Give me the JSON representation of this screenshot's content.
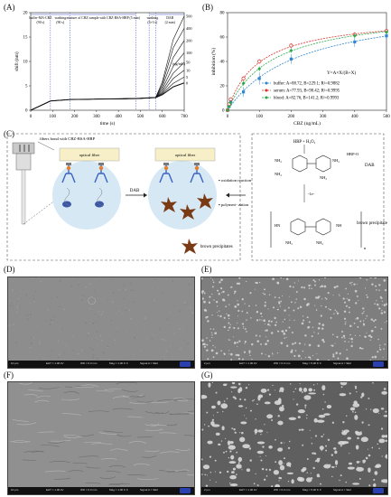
{
  "panels": {
    "A": "(A)",
    "B": "(B)",
    "C": "(C)",
    "D": "(D)",
    "E": "(E)",
    "F": "(F)",
    "G": "(G)"
  },
  "panel_a": {
    "phases": [
      {
        "label": "buffer-MA-CBZ",
        "sub": "(90 s)"
      },
      {
        "label": "washing",
        "sub": "(90 s)"
      },
      {
        "label": "mixture of CBZ sample with CBZ-BSA-HRP (5 min)",
        "sub": ""
      },
      {
        "label": "washing",
        "sub": "(3+3 s)"
      },
      {
        "label": "DAB",
        "sub": "(2 min)"
      }
    ],
    "conc_unit": "(ng/mL)",
    "curve_labels": [
      "0",
      "5",
      "10",
      "50",
      "100",
      "200",
      "400",
      "500"
    ]
  },
  "panel_b": {
    "equation": "Y=A×X/(B+X)",
    "legend": [
      {
        "name": "buffer: A=88.72, B=229.1; R²=0.9882",
        "color": "#2f86d1"
      },
      {
        "name": "serum: A=77.93, B=98.42; R²=0.9995",
        "color": "#d9342b"
      },
      {
        "name": "blood: A=82.76, B=141.2; R²=0.9993",
        "color": "#2aa84a"
      }
    ]
  },
  "panel_c": {
    "fiber_label": "fibers bond with CBZ-BSA-HRP",
    "optical_fiber": "optical fiber",
    "dab_arrow": "DAB",
    "brown_label": "brown precipitates",
    "reaction_notes": [
      "oxidation reaction",
      "polymeri- zation"
    ],
    "hrp_eq": "HRP + H₂O₂",
    "hrp_o": "HRP-O",
    "dab_name": "DAB",
    "nh2": "NH₂",
    "hn": "HN",
    "nh": "NH",
    "minus_e": "-1e-",
    "n": "n",
    "brown_ppt": "brown precipitate"
  },
  "chart_data": [
    {
      "type": "line",
      "title": "",
      "xlabel": "time (s)",
      "ylabel": "shift (nm)",
      "xlim": [
        0,
        700
      ],
      "ylim": [
        0,
        20
      ],
      "xticks": [
        0,
        100,
        200,
        300,
        400,
        500,
        600,
        700
      ],
      "yticks": [
        0,
        5,
        10,
        15,
        20
      ],
      "series": [
        {
          "name": "0",
          "x": [
            0,
            90,
            180,
            480,
            570,
            600,
            650,
            700
          ],
          "y": [
            0,
            1.9,
            2.2,
            2.4,
            2.6,
            3.2,
            4.8,
            5.6
          ]
        },
        {
          "name": "5",
          "x": [
            0,
            90,
            180,
            480,
            570,
            600,
            650,
            700
          ],
          "y": [
            0,
            1.9,
            2.2,
            2.4,
            2.6,
            3.4,
            5.5,
            6.8
          ]
        },
        {
          "name": "10",
          "x": [
            0,
            90,
            180,
            480,
            570,
            600,
            650,
            700
          ],
          "y": [
            0,
            1.9,
            2.2,
            2.4,
            2.6,
            3.6,
            6.5,
            8.2
          ]
        },
        {
          "name": "50",
          "x": [
            0,
            90,
            180,
            480,
            570,
            600,
            650,
            700
          ],
          "y": [
            0,
            1.9,
            2.2,
            2.4,
            2.6,
            3.9,
            7.6,
            9.8
          ]
        },
        {
          "name": "100",
          "x": [
            0,
            90,
            180,
            480,
            570,
            600,
            650,
            700
          ],
          "y": [
            0,
            1.9,
            2.2,
            2.4,
            2.6,
            4.3,
            9.0,
            11.8
          ]
        },
        {
          "name": "200",
          "x": [
            0,
            90,
            180,
            480,
            570,
            600,
            650,
            700
          ],
          "y": [
            0,
            1.9,
            2.2,
            2.4,
            2.6,
            4.8,
            10.8,
            14.3
          ]
        },
        {
          "name": "400",
          "x": [
            0,
            90,
            180,
            480,
            570,
            600,
            650,
            700
          ],
          "y": [
            0,
            1.9,
            2.2,
            2.4,
            2.6,
            5.3,
            12.8,
            16.8
          ]
        },
        {
          "name": "500",
          "x": [
            0,
            90,
            180,
            480,
            570,
            600,
            650,
            700
          ],
          "y": [
            0,
            1.9,
            2.2,
            2.4,
            2.6,
            5.8,
            14.5,
            19.3
          ]
        }
      ],
      "phase_boundaries_s": [
        90,
        180,
        480,
        540,
        570
      ]
    },
    {
      "type": "scatter",
      "title": "",
      "xlabel": "CBZ (ng/mL)",
      "ylabel": "inhibition (%)",
      "xlim": [
        0,
        500
      ],
      "ylim": [
        0,
        80
      ],
      "xticks": [
        0,
        100,
        200,
        300,
        400,
        500
      ],
      "yticks": [
        0,
        20,
        40,
        60,
        80
      ],
      "series": [
        {
          "name": "buffer",
          "color": "#2f86d1",
          "marker": "square",
          "A": 88.72,
          "B": 229.1,
          "x": [
            0,
            5,
            10,
            50,
            100,
            200,
            400,
            500
          ],
          "y": [
            0,
            3,
            7,
            15,
            26,
            42,
            56,
            61
          ],
          "err": [
            1,
            2,
            2,
            4,
            5,
            4,
            4,
            3
          ]
        },
        {
          "name": "serum",
          "color": "#d9342b",
          "marker": "circle",
          "A": 77.93,
          "B": 98.42,
          "x": [
            0,
            5,
            10,
            50,
            100,
            200,
            400,
            500
          ],
          "y": [
            0,
            5,
            9,
            26,
            40,
            53,
            62,
            65
          ],
          "err": [
            1,
            1,
            1,
            2,
            2,
            2,
            2,
            2
          ]
        },
        {
          "name": "blood",
          "color": "#2aa84a",
          "marker": "diamond",
          "A": 82.76,
          "B": 141.2,
          "x": [
            0,
            5,
            10,
            50,
            100,
            200,
            400,
            500
          ],
          "y": [
            0,
            3,
            6,
            22,
            34,
            49,
            61,
            64
          ],
          "err": [
            1,
            1,
            1,
            2,
            2,
            2,
            2,
            2
          ]
        }
      ]
    }
  ],
  "sem_images": [
    {
      "id": "D",
      "scale": "10 μm",
      "eht": "EHT = 1.00 kV",
      "wd": "WD = 6.3 mm",
      "mag": "Mag = 1.00 K X",
      "signal": "Signal A = SE2",
      "style": "smooth"
    },
    {
      "id": "E",
      "scale": "2 μm",
      "eht": "EHT = 1.00 kV",
      "wd": "WD = 6.3 mm",
      "mag": "Mag = 5.00 K X",
      "signal": "Signal A = SE2",
      "style": "dots"
    },
    {
      "id": "F",
      "scale": "10 μm",
      "eht": "EHT = 1.00 kV",
      "wd": "WD = 6.3 mm",
      "mag": "Mag = 1.00 K X",
      "signal": "Signal A = SE2",
      "style": "fibrous"
    },
    {
      "id": "G",
      "scale": "2 μm",
      "eht": "EHT = 1.00 kV",
      "wd": "WD = 6.3 mm",
      "mag": "Mag = 5.00 K X",
      "signal": "Signal A = SE2",
      "style": "clusters"
    }
  ]
}
